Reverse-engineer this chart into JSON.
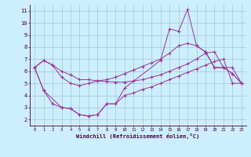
{
  "xlabel": "Windchill (Refroidissement éolien,°C)",
  "background_color": "#cceeff",
  "grid_color": "#99bbcc",
  "line_color": "#993399",
  "xlim": [
    -0.5,
    23.5
  ],
  "ylim": [
    1.5,
    11.5
  ],
  "xticks": [
    0,
    1,
    2,
    3,
    4,
    5,
    6,
    7,
    8,
    9,
    10,
    11,
    12,
    13,
    14,
    15,
    16,
    17,
    18,
    19,
    20,
    21,
    22,
    23
  ],
  "yticks": [
    2,
    3,
    4,
    5,
    6,
    7,
    8,
    9,
    10,
    11
  ],
  "series": [
    {
      "x": [
        0,
        1,
        2,
        3,
        4,
        5,
        6,
        7,
        8,
        9,
        10,
        11,
        12,
        13,
        14,
        15,
        16,
        17,
        18,
        19,
        20,
        21,
        22,
        23
      ],
      "y": [
        6.3,
        6.9,
        6.5,
        6.0,
        5.7,
        5.3,
        5.3,
        5.2,
        5.15,
        5.1,
        5.1,
        5.2,
        5.3,
        5.5,
        5.7,
        6.0,
        6.3,
        6.6,
        7.0,
        7.5,
        7.6,
        6.3,
        5.8,
        5.0
      ]
    },
    {
      "x": [
        0,
        1,
        2,
        3,
        4,
        5,
        6,
        7,
        8,
        9,
        10,
        11,
        12,
        13,
        14,
        15,
        16,
        17,
        18,
        19,
        20,
        21,
        22,
        23
      ],
      "y": [
        6.3,
        4.4,
        3.3,
        3.0,
        2.9,
        2.4,
        2.3,
        2.4,
        3.3,
        3.3,
        4.0,
        4.2,
        4.5,
        4.7,
        5.0,
        5.3,
        5.6,
        5.9,
        6.2,
        6.5,
        6.8,
        7.0,
        5.0,
        5.0
      ]
    },
    {
      "x": [
        0,
        1,
        3,
        4,
        5,
        6,
        7,
        8,
        9,
        10,
        14,
        15,
        16,
        17,
        18,
        19,
        20,
        21,
        22,
        23
      ],
      "y": [
        6.3,
        4.4,
        3.0,
        2.9,
        2.4,
        2.3,
        2.4,
        3.3,
        3.3,
        4.6,
        6.9,
        9.5,
        9.3,
        11.1,
        8.1,
        7.6,
        6.3,
        6.3,
        5.8,
        5.0
      ]
    },
    {
      "x": [
        0,
        1,
        2,
        3,
        4,
        5,
        6,
        7,
        8,
        9,
        10,
        11,
        12,
        13,
        14,
        15,
        16,
        17,
        18,
        19,
        20,
        21,
        22,
        23
      ],
      "y": [
        6.3,
        6.9,
        6.5,
        5.5,
        5.0,
        4.8,
        5.0,
        5.2,
        5.3,
        5.5,
        5.8,
        6.1,
        6.4,
        6.7,
        7.0,
        7.5,
        8.1,
        8.3,
        8.1,
        7.6,
        6.3,
        6.3,
        6.3,
        5.0
      ]
    }
  ]
}
